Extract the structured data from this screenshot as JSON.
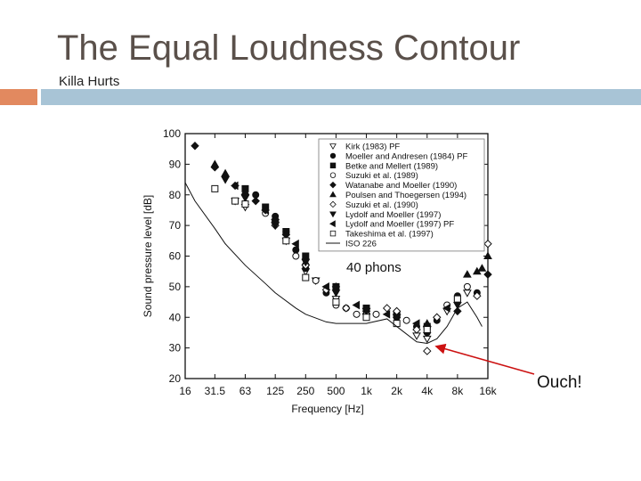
{
  "slide": {
    "title": "The Equal Loudness Contour",
    "subtitle": "Killa Hurts",
    "accent_color": "#e2895f",
    "band_color": "#a8c4d6"
  },
  "chart_data": {
    "type": "scatter",
    "title": "",
    "xlabel": "Frequency [Hz]",
    "ylabel": "Sound pressure level [dB]",
    "x_scale": "log",
    "x_ticks": [
      "16",
      "31.5",
      "63",
      "125",
      "250",
      "500",
      "1k",
      "2k",
      "4k",
      "8k",
      "16k"
    ],
    "x_tick_values": [
      16,
      31.5,
      63,
      125,
      250,
      500,
      1000,
      2000,
      4000,
      8000,
      16000
    ],
    "y_ticks": [
      "20",
      "30",
      "40",
      "50",
      "60",
      "70",
      "80",
      "90",
      "100"
    ],
    "ylim": [
      20,
      100
    ],
    "xlim": [
      16,
      16000
    ],
    "legend_position": "top-right",
    "series": [
      {
        "name": "Kirk (1983) PF",
        "marker": "triangle-down-open",
        "points": [
          [
            50,
            78
          ],
          [
            63,
            76
          ],
          [
            125,
            71
          ],
          [
            160,
            65
          ],
          [
            250,
            55
          ],
          [
            315,
            52
          ],
          [
            500,
            46
          ],
          [
            1000,
            42
          ],
          [
            2000,
            40
          ],
          [
            3150,
            34
          ],
          [
            4000,
            33
          ],
          [
            6300,
            42
          ],
          [
            10000,
            48
          ]
        ]
      },
      {
        "name": "Moeller and Andresen (1984) PF",
        "marker": "circle-filled",
        "points": [
          [
            80,
            80
          ],
          [
            125,
            73
          ],
          [
            160,
            68
          ],
          [
            200,
            62
          ],
          [
            250,
            56
          ],
          [
            400,
            48
          ],
          [
            630,
            43
          ],
          [
            1000,
            41
          ],
          [
            2000,
            40
          ],
          [
            3150,
            37
          ],
          [
            5000,
            39
          ],
          [
            8000,
            47
          ],
          [
            12500,
            48
          ]
        ]
      },
      {
        "name": "Betke and Mellert (1989)",
        "marker": "square-filled",
        "points": [
          [
            63,
            82
          ],
          [
            100,
            76
          ],
          [
            160,
            68
          ],
          [
            250,
            60
          ],
          [
            500,
            50
          ],
          [
            1000,
            43
          ],
          [
            2000,
            41
          ],
          [
            4000,
            37
          ],
          [
            8000,
            46
          ]
        ]
      },
      {
        "name": "Suzuki et al. (1989)",
        "marker": "circle-open",
        "points": [
          [
            100,
            74
          ],
          [
            200,
            60
          ],
          [
            315,
            52
          ],
          [
            500,
            44
          ],
          [
            800,
            41
          ],
          [
            1250,
            41
          ],
          [
            2500,
            39
          ],
          [
            4000,
            35
          ],
          [
            6300,
            44
          ],
          [
            10000,
            50
          ]
        ]
      },
      {
        "name": "Watanabe and Moeller (1990)",
        "marker": "diamond-filled",
        "points": [
          [
            20,
            96
          ],
          [
            31.5,
            89
          ],
          [
            40,
            86
          ],
          [
            50,
            83
          ],
          [
            63,
            80
          ],
          [
            80,
            78
          ],
          [
            100,
            75
          ],
          [
            125,
            72
          ],
          [
            160,
            67
          ],
          [
            250,
            59
          ],
          [
            500,
            50
          ],
          [
            1000,
            42
          ],
          [
            2000,
            40
          ],
          [
            4000,
            35
          ],
          [
            8000,
            42
          ],
          [
            16000,
            54
          ]
        ]
      },
      {
        "name": "Poulsen and Thoegersen (1994)",
        "marker": "triangle-filled",
        "points": [
          [
            31.5,
            90
          ],
          [
            40,
            87
          ],
          [
            63,
            81
          ],
          [
            125,
            72
          ],
          [
            250,
            58
          ],
          [
            1000,
            42
          ],
          [
            4000,
            38
          ],
          [
            10000,
            54
          ],
          [
            12500,
            55
          ],
          [
            14000,
            56
          ],
          [
            16000,
            60
          ]
        ]
      },
      {
        "name": "Suzuki et al. (1990)",
        "marker": "diamond-open",
        "points": [
          [
            125,
            70
          ],
          [
            250,
            57
          ],
          [
            400,
            49
          ],
          [
            630,
            43
          ],
          [
            1000,
            41
          ],
          [
            1600,
            43
          ],
          [
            2000,
            42
          ],
          [
            3150,
            36
          ],
          [
            4000,
            29
          ],
          [
            5000,
            40
          ],
          [
            12500,
            47
          ],
          [
            16000,
            64
          ]
        ]
      },
      {
        "name": "Lydolf and Moeller (1997)",
        "marker": "triangle-down-filled",
        "points": [
          [
            40,
            85
          ],
          [
            63,
            79
          ],
          [
            125,
            70
          ],
          [
            250,
            58
          ],
          [
            500,
            48
          ],
          [
            1000,
            42
          ],
          [
            2000,
            40
          ],
          [
            4000,
            36
          ],
          [
            8000,
            44
          ]
        ]
      },
      {
        "name": "Lydolf and Moeller (1997) PF",
        "marker": "triangle-left-filled",
        "points": [
          [
            50,
            83
          ],
          [
            100,
            75
          ],
          [
            200,
            64
          ],
          [
            400,
            50
          ],
          [
            800,
            44
          ],
          [
            1600,
            41
          ],
          [
            3150,
            38
          ],
          [
            6300,
            43
          ]
        ]
      },
      {
        "name": "Takeshima et al. (1997)",
        "marker": "square-open",
        "points": [
          [
            31.5,
            82
          ],
          [
            50,
            78
          ],
          [
            63,
            77
          ],
          [
            160,
            65
          ],
          [
            250,
            53
          ],
          [
            500,
            45
          ],
          [
            1000,
            40
          ],
          [
            2000,
            38
          ],
          [
            4000,
            36
          ],
          [
            8000,
            46
          ]
        ]
      },
      {
        "name": "ISO 226",
        "marker": "line",
        "points": [
          [
            16,
            84
          ],
          [
            20,
            78
          ],
          [
            31.5,
            69
          ],
          [
            40,
            64
          ],
          [
            63,
            57
          ],
          [
            100,
            51
          ],
          [
            125,
            48
          ],
          [
            200,
            43
          ],
          [
            250,
            41
          ],
          [
            400,
            38.5
          ],
          [
            500,
            38
          ],
          [
            1000,
            38
          ],
          [
            1600,
            39.5
          ],
          [
            2000,
            37
          ],
          [
            3150,
            32
          ],
          [
            4000,
            31.5
          ],
          [
            5000,
            33
          ],
          [
            6300,
            37
          ],
          [
            8000,
            43
          ],
          [
            10000,
            45
          ],
          [
            12500,
            40
          ],
          [
            14000,
            37
          ]
        ]
      }
    ],
    "annotations": [
      {
        "text": "40 phons"
      },
      {
        "text": "Ouch!",
        "points_to": [
          4000,
          32
        ]
      }
    ]
  }
}
